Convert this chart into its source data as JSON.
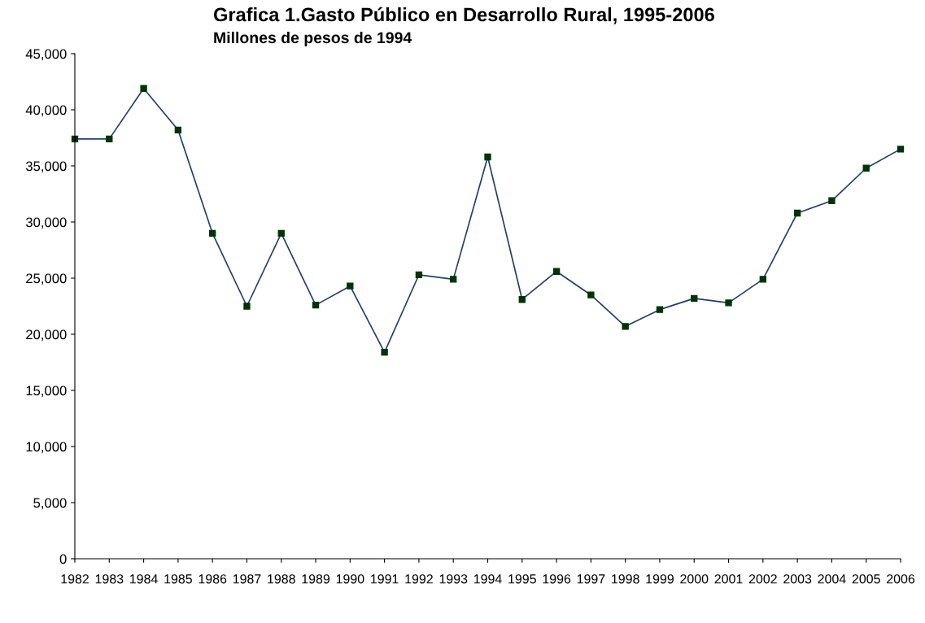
{
  "chart_data": {
    "type": "line",
    "title": "Grafica 1.Gasto Público en Desarrollo Rural, 1995-2006",
    "subtitle": "Millones de pesos de 1994",
    "categories": [
      "1982",
      "1983",
      "1984",
      "1985",
      "1986",
      "1987",
      "1988",
      "1989",
      "1990",
      "1991",
      "1992",
      "1993",
      "1994",
      "1995",
      "1996",
      "1997",
      "1998",
      "1999",
      "2000",
      "2001",
      "2002",
      "2003",
      "2004",
      "2005",
      "2006"
    ],
    "series": [
      {
        "color": "#1f3f6f",
        "values": [
          37400,
          37400,
          41900,
          38200,
          29000,
          22500,
          29000,
          22600,
          24300,
          18400,
          25300,
          24900,
          35800,
          23100,
          25600,
          23500,
          20700,
          22200,
          23200,
          22800,
          24900,
          30800,
          31900,
          34800,
          36500
        ]
      }
    ],
    "ylim": [
      0,
      45000
    ],
    "yticks": [
      {
        "value": 0,
        "label": "0"
      },
      {
        "value": 5000,
        "label": "5,000"
      },
      {
        "value": 10000,
        "label": "10,000"
      },
      {
        "value": 15000,
        "label": "15,000"
      },
      {
        "value": 20000,
        "label": "20,000"
      },
      {
        "value": 25000,
        "label": "25,000"
      },
      {
        "value": 30000,
        "label": "30,000"
      },
      {
        "value": 35000,
        "label": "35,000"
      },
      {
        "value": 40000,
        "label": "40,000"
      },
      {
        "value": 45000,
        "label": "45,000"
      }
    ],
    "grid": false,
    "legend": false,
    "marker": "square",
    "line_style": "solid"
  }
}
